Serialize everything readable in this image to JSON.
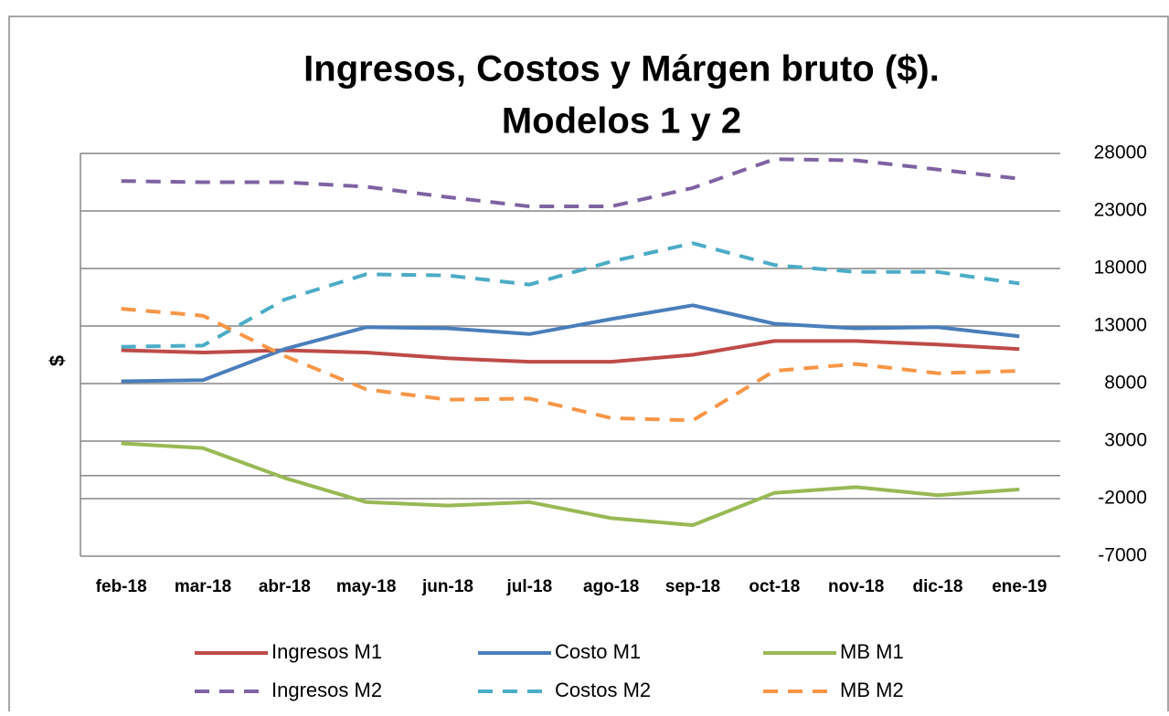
{
  "chart_data": {
    "type": "line",
    "title": [
      "Ingresos, Costos y Márgen bruto ($).",
      "Modelos 1 y 2"
    ],
    "y_label": "$",
    "categories": [
      "feb-18",
      "mar-18",
      "abr-18",
      "may-18",
      "jun-18",
      "jul-18",
      "ago-18",
      "sep-18",
      "oct-18",
      "nov-18",
      "dic-18",
      "ene-19"
    ],
    "series": [
      {
        "name": "Ingresos M1",
        "color": "#be4b48",
        "dashed": false,
        "values": [
          10900,
          10700,
          10900,
          10700,
          10200,
          9900,
          9900,
          10500,
          11700,
          11700,
          11400,
          11000
        ]
      },
      {
        "name": "Costo M1",
        "color": "#4a7ebb",
        "dashed": false,
        "values": [
          8200,
          8300,
          11000,
          12900,
          12800,
          12300,
          13600,
          14800,
          13200,
          12800,
          12900,
          12100
        ]
      },
      {
        "name": "MB M1",
        "color": "#98b954",
        "dashed": false,
        "values": [
          2800,
          2400,
          -200,
          -2300,
          -2600,
          -2300,
          -3700,
          -4300,
          -1500,
          -1000,
          -1700,
          -1200
        ]
      },
      {
        "name": "Ingresos M2",
        "color": "#7e62a1",
        "dashed": true,
        "values": [
          25600,
          25500,
          25500,
          25100,
          24200,
          23400,
          23400,
          25000,
          27500,
          27400,
          26600,
          25800
        ]
      },
      {
        "name": "Costos M2",
        "color": "#4bacc6",
        "dashed": true,
        "values": [
          11200,
          11300,
          15300,
          17500,
          17400,
          16600,
          18600,
          20200,
          18300,
          17700,
          17700,
          16700
        ]
      },
      {
        "name": "MB M2",
        "color": "#f79646",
        "dashed": true,
        "values": [
          14500,
          13900,
          10400,
          7500,
          6600,
          6700,
          5000,
          4800,
          9100,
          9700,
          8900,
          9100
        ]
      }
    ],
    "ylim": [
      -7000,
      28000
    ],
    "yticks": [
      -7000,
      -2000,
      3000,
      8000,
      13000,
      18000,
      23000,
      28000
    ],
    "grid": true,
    "y_axis_side": "right",
    "legend": "bottom"
  }
}
